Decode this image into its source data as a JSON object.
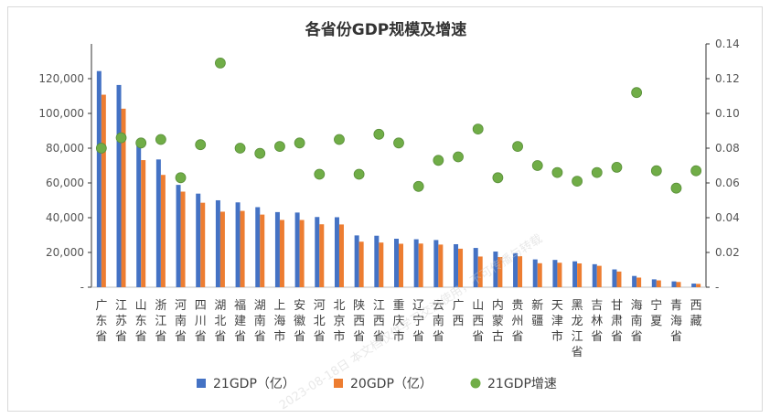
{
  "chart_data": {
    "type": "bar",
    "title": "各省份GDP规模及增速",
    "categories": [
      "广东省",
      "江苏省",
      "山东省",
      "浙江省",
      "河南省",
      "四川省",
      "湖北省",
      "福建省",
      "湖南省",
      "上海市",
      "安徽省",
      "河北省",
      "北京市",
      "陕西省",
      "江西省",
      "重庆市",
      "辽宁省",
      "云南省",
      "广西",
      "山西省",
      "内蒙古",
      "贵州省",
      "新疆",
      "天津市",
      "黑龙江省",
      "吉林省",
      "甘肃省",
      "海南省",
      "宁夏",
      "青海省",
      "西藏"
    ],
    "series": [
      {
        "name": "21GDP（亿）",
        "type": "bar",
        "axis": "left",
        "color": "#4472C4",
        "values": [
          124370,
          116364,
          83096,
          73516,
          58887,
          53851,
          50013,
          48810,
          46063,
          43215,
          42959,
          40391,
          40270,
          29801,
          29620,
          27894,
          27584,
          27147,
          24741,
          22590,
          20514,
          19586,
          15984,
          15695,
          14879,
          13236,
          10243,
          6475,
          4522,
          3347,
          2080
        ]
      },
      {
        "name": "20GDP（亿）",
        "type": "bar",
        "axis": "left",
        "color": "#ED7D31",
        "values": [
          110761,
          102719,
          73129,
          64613,
          54997,
          48599,
          43443,
          43904,
          41781,
          38701,
          38681,
          36207,
          36103,
          26182,
          25692,
          25003,
          25115,
          24522,
          22157,
          17652,
          17360,
          17827,
          13798,
          14084,
          13698,
          12311,
          9017,
          5532,
          3921,
          3006,
          1903
        ]
      },
      {
        "name": "21GDP增速",
        "type": "scatter",
        "axis": "right",
        "color": "#70AD47",
        "values": [
          0.08,
          0.086,
          0.083,
          0.085,
          0.063,
          0.082,
          0.129,
          0.08,
          0.077,
          0.081,
          0.083,
          0.065,
          0.085,
          0.065,
          0.088,
          0.083,
          0.058,
          0.073,
          0.075,
          0.091,
          0.063,
          0.081,
          0.07,
          0.066,
          0.061,
          0.066,
          0.069,
          0.112,
          0.067,
          0.057,
          0.067
        ]
      }
    ],
    "y_left": {
      "min": 0,
      "max": 140000,
      "ticks": [
        "-",
        "20,000",
        "40,000",
        "60,000",
        "80,000",
        "100,000",
        "120,000"
      ],
      "tick_values": [
        0,
        20000,
        40000,
        60000,
        80000,
        100000,
        120000
      ]
    },
    "y_right": {
      "min": 0,
      "max": 0.14,
      "ticks": [
        "-",
        "0.02",
        "0.04",
        "0.06",
        "0.08",
        "0.10",
        "0.12",
        "0.14"
      ],
      "tick_values": [
        0,
        0.02,
        0.04,
        0.06,
        0.08,
        0.1,
        0.12,
        0.14
      ]
    },
    "legend": {
      "placement": "bottom",
      "items": [
        "21GDP（亿）",
        "20GDP（亿）",
        "21GDP增速"
      ]
    },
    "grid": false
  },
  "watermark": "2023-08-18日 本文档仅供学习交流使用，不可传播与转载"
}
